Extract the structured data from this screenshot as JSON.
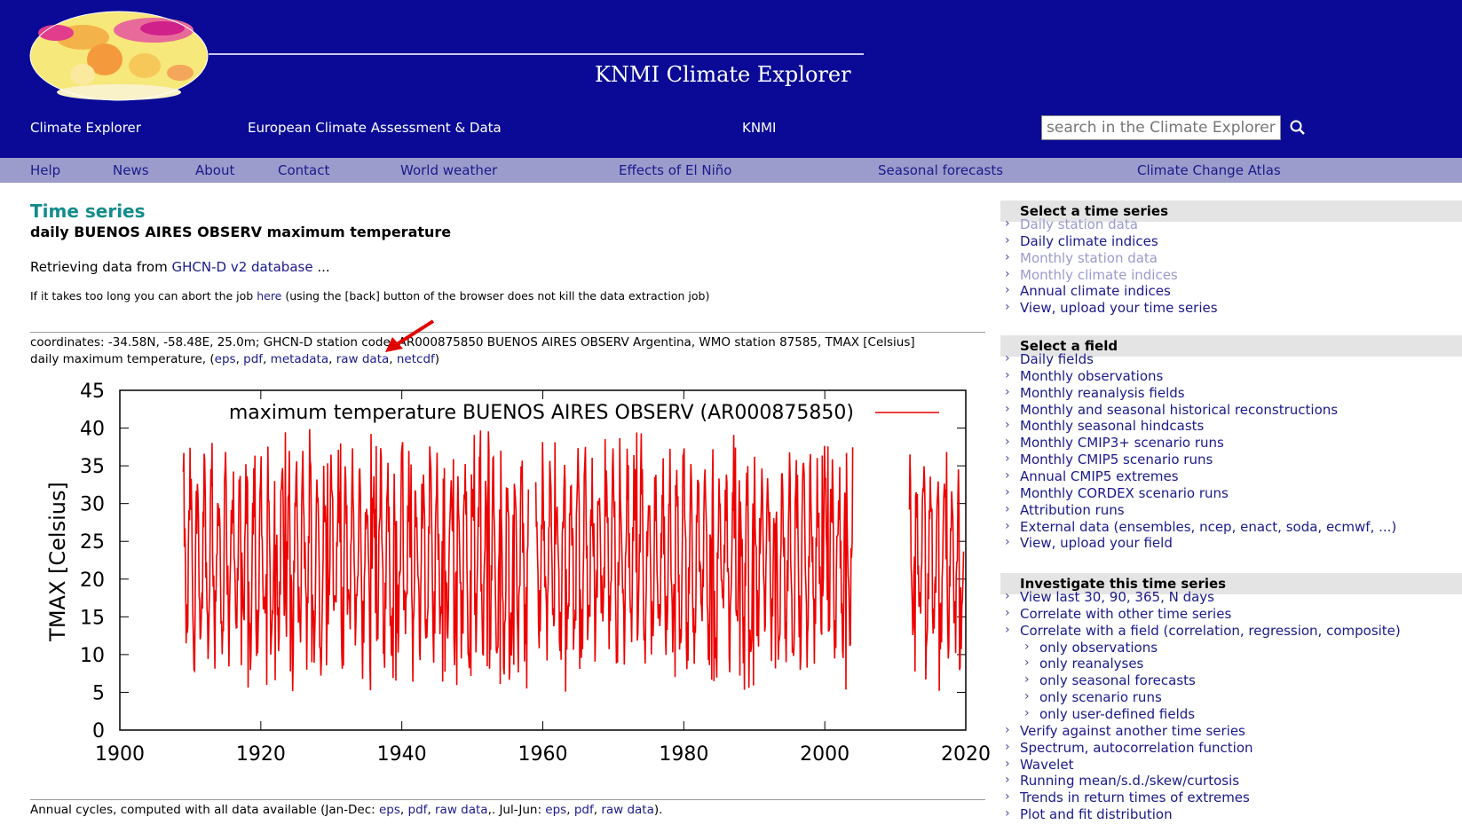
{
  "header": {
    "site_title": "KNMI Climate Explorer",
    "top_nav": [
      "Climate Explorer",
      "European Climate Assessment & Data",
      "KNMI"
    ],
    "search_placeholder": "search in the Climate Explorer",
    "brand_color": "#0a0a96"
  },
  "menu": [
    "Help",
    "News",
    "About",
    "Contact",
    "World weather",
    "Effects of El Niño",
    "Seasonal forecasts",
    "Climate Change Atlas"
  ],
  "main": {
    "title": "Time series",
    "subtitle": "daily BUENOS AIRES OBSERV maximum temperature",
    "retrieving_prefix": "Retrieving data from ",
    "retrieving_link": "GHCN-D v2 database",
    "retrieving_suffix": " ...",
    "abort_prefix": "If it takes too long you can abort the job ",
    "abort_link": "here",
    "abort_suffix": " (using the [back] button of the browser does not kill the data extraction job)",
    "coords_line1": "coordinates: -34.58N, -58.48E, 25.0m; GHCN-D station code: AR000875850 BUENOS AIRES OBSERV Argentina, WMO station 87585, TMAX [Celsius]",
    "coords_line2_prefix": "daily maximum temperature, (",
    "downloads": [
      "eps",
      "pdf",
      "metadata",
      "raw data",
      "netcdf"
    ],
    "coords_line2_suffix": ")",
    "annual_prefix": "Annual cycles, computed with all data available (Jan-Dec: ",
    "annual_jan": [
      "eps",
      "pdf",
      "raw data"
    ],
    "annual_mid": ",. Jul-Jun: ",
    "annual_jul": [
      "eps",
      "pdf",
      "raw data"
    ],
    "annual_suffix": ")."
  },
  "chart_data": {
    "type": "line",
    "legend": "maximum temperature BUENOS AIRES OBSERV (AR000875850)",
    "ylabel": "TMAX [Celsius]",
    "xlabel": "",
    "xlim": [
      1900,
      2020
    ],
    "ylim": [
      0,
      45
    ],
    "xticks": [
      1900,
      1920,
      1940,
      1960,
      1980,
      2000,
      2020
    ],
    "yticks": [
      0,
      5,
      10,
      15,
      20,
      25,
      30,
      35,
      40,
      45
    ],
    "series_color": "#ee0000",
    "data_periods": [
      [
        1909,
        1958
      ],
      [
        1959,
        2004
      ],
      [
        2012,
        2019.7
      ]
    ],
    "seasonal_min_typical": 9,
    "seasonal_max_typical": 35,
    "record_extremes": {
      "max": 43.3,
      "min": 4.2
    }
  },
  "sidebar": {
    "sections": [
      {
        "title": "Select a time series",
        "items": [
          {
            "label": "Daily station data",
            "disabled": true
          },
          {
            "label": "Daily climate indices",
            "disabled": false
          },
          {
            "label": "Monthly station data",
            "disabled": true
          },
          {
            "label": "Monthly climate indices",
            "disabled": true
          },
          {
            "label": "Annual climate indices",
            "disabled": false
          },
          {
            "label": "View, upload your time series",
            "disabled": false
          }
        ]
      },
      {
        "title": "Select a field",
        "items": [
          {
            "label": "Daily fields"
          },
          {
            "label": "Monthly observations"
          },
          {
            "label": "Monthly reanalysis fields"
          },
          {
            "label": "Monthly and seasonal historical reconstructions"
          },
          {
            "label": "Monthly seasonal hindcasts"
          },
          {
            "label": "Monthly CMIP3+ scenario runs"
          },
          {
            "label": "Monthly CMIP5 scenario runs"
          },
          {
            "label": "Annual CMIP5 extremes"
          },
          {
            "label": "Monthly CORDEX scenario runs"
          },
          {
            "label": "Attribution runs"
          },
          {
            "label": "External data (ensembles, ncep, enact, soda, ecmwf, ...)"
          },
          {
            "label": "View, upload your field"
          }
        ]
      },
      {
        "title": "Investigate this time series",
        "items": [
          {
            "label": "View last 30, 90, 365, N days",
            "indent": false
          },
          {
            "label": "Correlate with other time series",
            "indent": false
          },
          {
            "label": "Correlate with a field (correlation, regression, composite)",
            "indent": false
          },
          {
            "label": "only observations",
            "indent": true
          },
          {
            "label": "only reanalyses",
            "indent": true
          },
          {
            "label": "only seasonal forecasts",
            "indent": true
          },
          {
            "label": "only scenario runs",
            "indent": true
          },
          {
            "label": "only user-defined fields",
            "indent": true
          },
          {
            "label": "Verify against another time series",
            "indent": false
          },
          {
            "label": "Spectrum, autocorrelation function",
            "indent": false
          },
          {
            "label": "Wavelet",
            "indent": false
          },
          {
            "label": "Running mean/s.d./skew/curtosis",
            "indent": false
          },
          {
            "label": "Trends in return times of extremes",
            "indent": false
          },
          {
            "label": "Plot and fit distribution",
            "indent": false
          }
        ]
      }
    ]
  }
}
